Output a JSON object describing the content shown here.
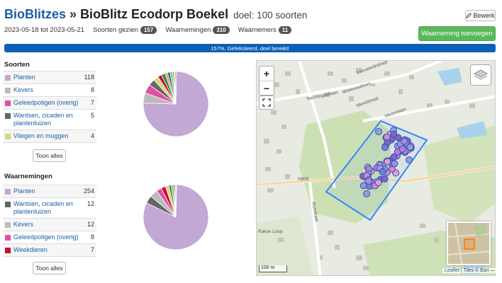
{
  "header": {
    "breadcrumb_link": "BioBlitzes",
    "separator": "»",
    "title": "BioBlitz Ecodorp Boekel",
    "goal": "doel: 100 soorten",
    "edit_label": "Bewerk"
  },
  "meta": {
    "dates": "2023-05-18 tot 2023-05-21",
    "species_label": "Soorten gezien",
    "species_count": "157",
    "observations_label": "Waarnemingen",
    "observations_count": "310",
    "observers_label": "Waarnemers",
    "observers_count": "11"
  },
  "add_observation_label": "Waarneming toevoegen",
  "progress": {
    "text": "157%, Gefeliciteerd, doel bereikt!",
    "fraction": 1.0,
    "color": "#0d5fb5"
  },
  "species_section": {
    "title": "Soorten",
    "rows": [
      {
        "name": "Planten",
        "count": "118",
        "color": "#c3a7d4"
      },
      {
        "name": "Kevers",
        "count": "8",
        "color": "#bbbbbb"
      },
      {
        "name": "Geleedpotigen (overig)",
        "count": "7",
        "color": "#e04fa6"
      },
      {
        "name": "Wantsen, cicaden en plantenluizen",
        "count": "5",
        "color": "#666666"
      },
      {
        "name": "Vliegen en muggen",
        "count": "4",
        "color": "#d6d77a"
      }
    ],
    "show_all_label": "Toon alles"
  },
  "observations_section": {
    "title": "Waarnemingen",
    "rows": [
      {
        "name": "Planten",
        "count": "254",
        "color": "#c3a7d4"
      },
      {
        "name": "Wantsen, cicaden en plantenluizen",
        "count": "12",
        "color": "#666666"
      },
      {
        "name": "Kevers",
        "count": "12",
        "color": "#bbbbbb"
      },
      {
        "name": "Geleedpotigen (overig)",
        "count": "8",
        "color": "#e04fa6"
      },
      {
        "name": "Weekdieren",
        "count": "7",
        "color": "#c8102e"
      }
    ],
    "show_all_label": "Toon alles"
  },
  "pie_species": {
    "values": [
      118,
      8,
      7,
      5,
      4,
      3,
      3,
      2,
      2,
      2,
      1,
      1,
      1
    ],
    "colors": [
      "#c3a7d4",
      "#bbbbbb",
      "#e04fa6",
      "#666666",
      "#d6d77a",
      "#c8102e",
      "#2e8b57",
      "#f0a030",
      "#1f5fbf",
      "#8fd16b",
      "#9b59b6",
      "#ffd700",
      "#4aa3df"
    ]
  },
  "pie_observations": {
    "values": [
      254,
      12,
      12,
      8,
      7,
      5,
      4,
      3,
      2,
      2,
      1
    ],
    "colors": [
      "#c3a7d4",
      "#666666",
      "#bbbbbb",
      "#e04fa6",
      "#c8102e",
      "#d6d77a",
      "#2e8b57",
      "#f0a030",
      "#1f5fbf",
      "#8fd16b",
      "#4aa3df"
    ]
  },
  "map": {
    "zoom_in": "+",
    "zoom_out": "−",
    "scale_label": "100 m",
    "attribution_link": "Leaflet",
    "attribution_rest": "| Tiles © Esri —",
    "street_labels": [
      "Leeuwerikstraat",
      "Nachtegaallaan",
      "Merelstraat",
      "Wielewaallaan",
      "Mezenlaan",
      "N605",
      "Runstraat",
      "Rakse Loop"
    ]
  }
}
